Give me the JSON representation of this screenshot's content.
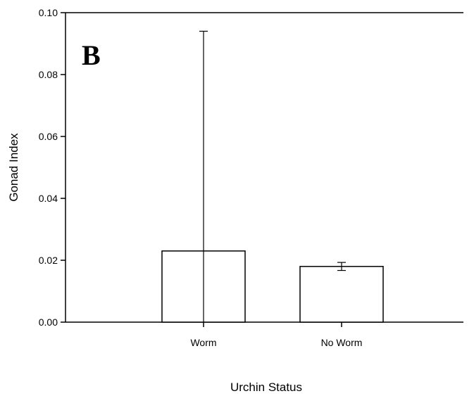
{
  "chart_data": {
    "type": "bar",
    "panel_label": "B",
    "xlabel": "Urchin Status",
    "ylabel": "Gonad Index",
    "categories": [
      "Worm",
      "No Worm"
    ],
    "values": [
      0.023,
      0.018
    ],
    "error_upper": [
      0.094,
      0.0193
    ],
    "error_lower": [
      0.0,
      0.0167
    ],
    "ylim": [
      0.0,
      0.1
    ],
    "yticks": [
      0.0,
      0.02,
      0.04,
      0.06,
      0.08,
      0.1
    ],
    "ytick_labels": [
      "0.00",
      "0.02",
      "0.04",
      "0.06",
      "0.08",
      "0.10"
    ],
    "grid": false,
    "legend": "none",
    "colors": {
      "bar_fill": "#ffffff",
      "stroke": "#000000"
    }
  }
}
